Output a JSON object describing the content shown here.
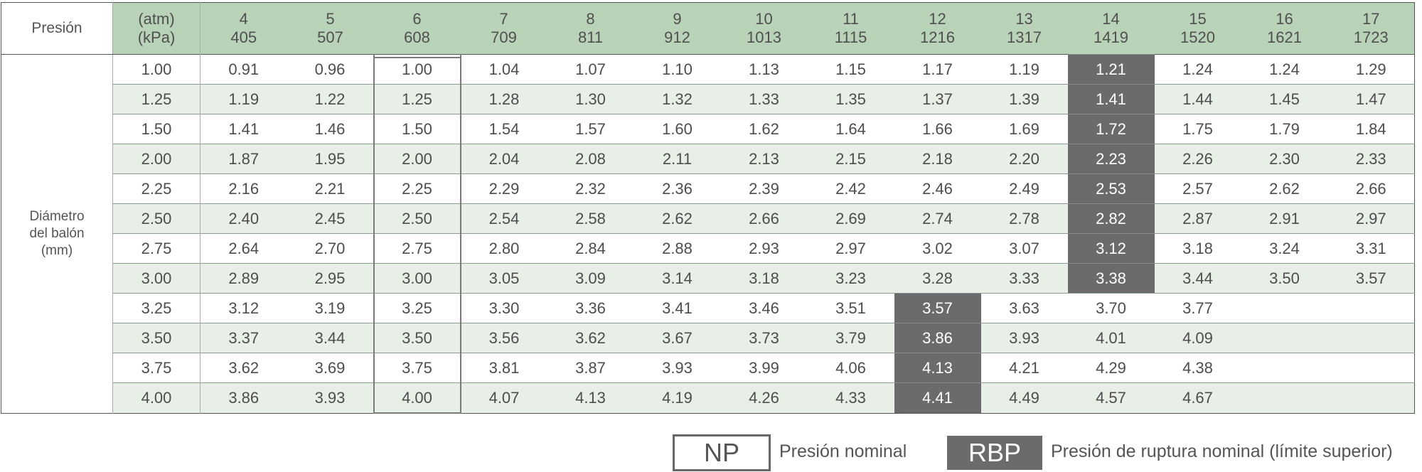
{
  "table": {
    "pressure_label": "Presión",
    "unit_atm": "(atm)",
    "unit_kpa": "(kPa)",
    "atm": [
      "4",
      "5",
      "6",
      "7",
      "8",
      "9",
      "10",
      "11",
      "12",
      "13",
      "14",
      "15",
      "16",
      "17"
    ],
    "kpa": [
      "405",
      "507",
      "608",
      "709",
      "811",
      "912",
      "1013",
      "1115",
      "1216",
      "1317",
      "1419",
      "1520",
      "1621",
      "1723"
    ],
    "row_label": [
      "Diámetro",
      "del balón",
      "(mm)"
    ],
    "nominal_column_atm": "6",
    "rows": [
      {
        "diameter": "1.00",
        "values": [
          "0.91",
          "0.96",
          "1.00",
          "1.04",
          "1.07",
          "1.10",
          "1.13",
          "1.15",
          "1.17",
          "1.19",
          "1.21",
          "1.24",
          "1.24",
          "1.29"
        ],
        "rbp_atm": "14"
      },
      {
        "diameter": "1.25",
        "values": [
          "1.19",
          "1.22",
          "1.25",
          "1.28",
          "1.30",
          "1.32",
          "1.33",
          "1.35",
          "1.37",
          "1.39",
          "1.41",
          "1.44",
          "1.45",
          "1.47"
        ],
        "rbp_atm": "14"
      },
      {
        "diameter": "1.50",
        "values": [
          "1.41",
          "1.46",
          "1.50",
          "1.54",
          "1.57",
          "1.60",
          "1.62",
          "1.64",
          "1.66",
          "1.69",
          "1.72",
          "1.75",
          "1.79",
          "1.84"
        ],
        "rbp_atm": "14"
      },
      {
        "diameter": "2.00",
        "values": [
          "1.87",
          "1.95",
          "2.00",
          "2.04",
          "2.08",
          "2.11",
          "2.13",
          "2.15",
          "2.18",
          "2.20",
          "2.23",
          "2.26",
          "2.30",
          "2.33"
        ],
        "rbp_atm": "14"
      },
      {
        "diameter": "2.25",
        "values": [
          "2.16",
          "2.21",
          "2.25",
          "2.29",
          "2.32",
          "2.36",
          "2.39",
          "2.42",
          "2.46",
          "2.49",
          "2.53",
          "2.57",
          "2.62",
          "2.66"
        ],
        "rbp_atm": "14"
      },
      {
        "diameter": "2.50",
        "values": [
          "2.40",
          "2.45",
          "2.50",
          "2.54",
          "2.58",
          "2.62",
          "2.66",
          "2.69",
          "2.74",
          "2.78",
          "2.82",
          "2.87",
          "2.91",
          "2.97"
        ],
        "rbp_atm": "14"
      },
      {
        "diameter": "2.75",
        "values": [
          "2.64",
          "2.70",
          "2.75",
          "2.80",
          "2.84",
          "2.88",
          "2.93",
          "2.97",
          "3.02",
          "3.07",
          "3.12",
          "3.18",
          "3.24",
          "3.31"
        ],
        "rbp_atm": "14"
      },
      {
        "diameter": "3.00",
        "values": [
          "2.89",
          "2.95",
          "3.00",
          "3.05",
          "3.09",
          "3.14",
          "3.18",
          "3.23",
          "3.28",
          "3.33",
          "3.38",
          "3.44",
          "3.50",
          "3.57"
        ],
        "rbp_atm": "14"
      },
      {
        "diameter": "3.25",
        "values": [
          "3.12",
          "3.19",
          "3.25",
          "3.30",
          "3.36",
          "3.41",
          "3.46",
          "3.51",
          "3.57",
          "3.63",
          "3.70",
          "3.77",
          "",
          ""
        ],
        "rbp_atm": "12"
      },
      {
        "diameter": "3.50",
        "values": [
          "3.37",
          "3.44",
          "3.50",
          "3.56",
          "3.62",
          "3.67",
          "3.73",
          "3.79",
          "3.86",
          "3.93",
          "4.01",
          "4.09",
          "",
          ""
        ],
        "rbp_atm": "12"
      },
      {
        "diameter": "3.75",
        "values": [
          "3.62",
          "3.69",
          "3.75",
          "3.81",
          "3.87",
          "3.93",
          "3.99",
          "4.06",
          "4.13",
          "4.21",
          "4.29",
          "4.38",
          "",
          ""
        ],
        "rbp_atm": "12"
      },
      {
        "diameter": "4.00",
        "values": [
          "3.86",
          "3.93",
          "4.00",
          "4.07",
          "4.13",
          "4.19",
          "4.26",
          "4.33",
          "4.41",
          "4.49",
          "4.57",
          "4.67",
          "",
          ""
        ],
        "rbp_atm": "12"
      }
    ]
  },
  "legend": {
    "np_box": "NP",
    "np_text": "Presión nominal",
    "rbp_box": "RBP",
    "rbp_text": "Presión de ruptura nominal (límite superior)"
  },
  "colors": {
    "header_green": "#b8d3b7",
    "alt_row_green": "#e8efe7",
    "rbp_gray": "#6b6b6d"
  }
}
